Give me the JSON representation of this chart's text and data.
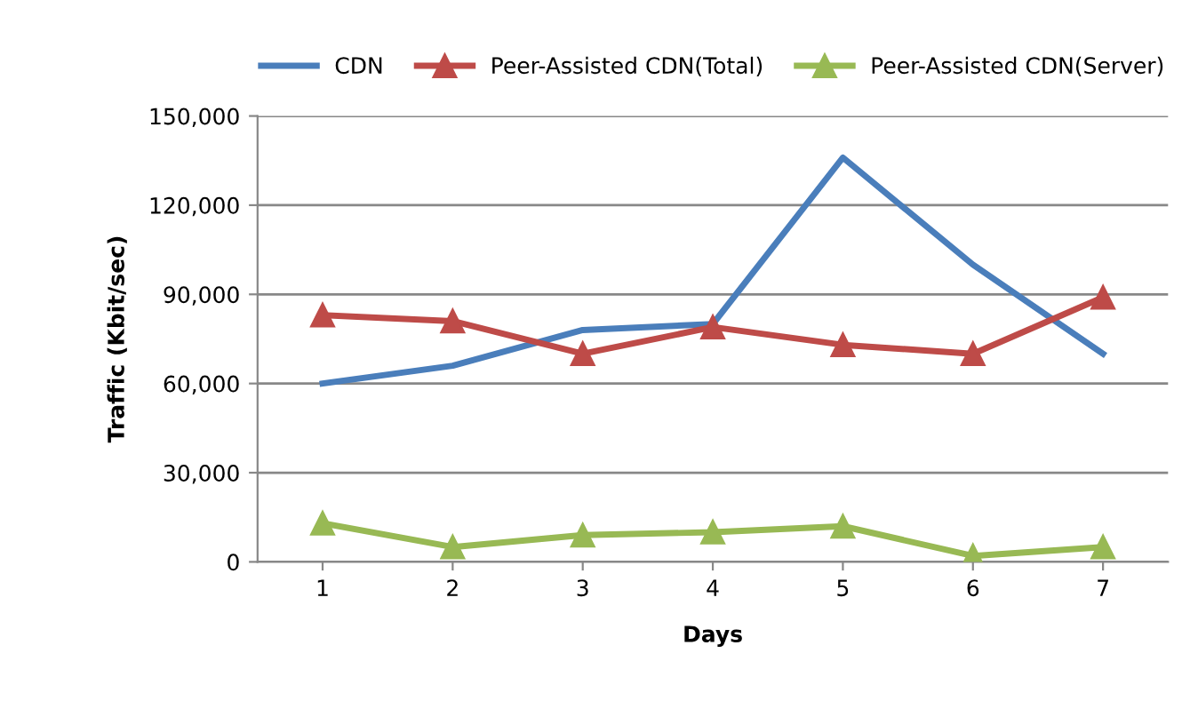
{
  "chart_data": {
    "type": "line",
    "xlabel": "Days",
    "ylabel": "Traffic (Kbit/sec)",
    "categories": [
      "1",
      "2",
      "3",
      "4",
      "5",
      "6",
      "7"
    ],
    "series": [
      {
        "name": "CDN",
        "color": "#4a7ebb",
        "marker": "none",
        "values": [
          60000,
          66000,
          78000,
          80000,
          136000,
          100000,
          70000
        ]
      },
      {
        "name": "Peer-Assisted CDN(Total)",
        "color": "#be4b48",
        "marker": "triangle",
        "values": [
          83000,
          81000,
          70000,
          79000,
          73000,
          70000,
          89000
        ]
      },
      {
        "name": "Peer-Assisted CDN(Server)",
        "color": "#98b954",
        "marker": "triangle",
        "values": [
          13000,
          5000,
          9000,
          10000,
          12000,
          2000,
          5000
        ]
      }
    ],
    "ylim": [
      0,
      150000
    ],
    "yticks": [
      {
        "value": 0,
        "label": "0"
      },
      {
        "value": 30000,
        "label": "30,000"
      },
      {
        "value": 60000,
        "label": "60,000"
      },
      {
        "value": 90000,
        "label": "90,000"
      },
      {
        "value": 120000,
        "label": "120,000"
      },
      {
        "value": 150000,
        "label": "150,000"
      }
    ],
    "grid": "y",
    "legend": "top"
  }
}
